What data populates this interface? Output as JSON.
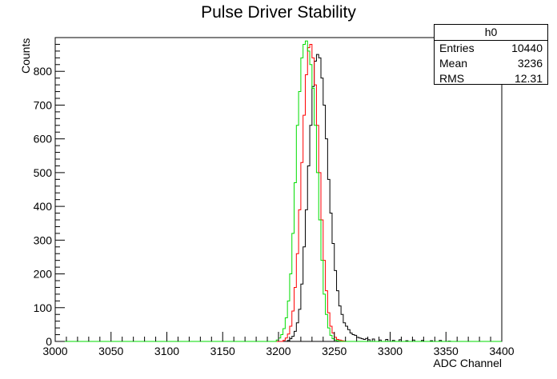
{
  "chart_data": {
    "type": "line",
    "title": "Pulse Driver Stability",
    "xlabel": "ADC Channel",
    "ylabel": "Counts",
    "xlim": [
      3000,
      3400
    ],
    "ylim": [
      0,
      900
    ],
    "xticks": [
      3000,
      3050,
      3100,
      3150,
      3200,
      3250,
      3300,
      3350,
      3400
    ],
    "yticks": [
      0,
      100,
      200,
      300,
      400,
      500,
      600,
      700,
      800
    ],
    "bin_width": 2,
    "grid": false,
    "series": [
      {
        "color": "#000000",
        "x": [
          3208,
          3210,
          3212,
          3214,
          3216,
          3218,
          3220,
          3222,
          3224,
          3226,
          3228,
          3230,
          3232,
          3234,
          3236,
          3238,
          3240,
          3242,
          3244,
          3246,
          3248,
          3250,
          3252,
          3254,
          3256,
          3258,
          3260,
          3262,
          3264,
          3266,
          3268,
          3270,
          3272,
          3274,
          3276,
          3278,
          3280,
          3284,
          3290,
          3296,
          3302,
          3308,
          3314,
          3320,
          3328,
          3336,
          3344,
          3352,
          3360
        ],
        "y": [
          3,
          8,
          15,
          30,
          55,
          95,
          170,
          280,
          390,
          520,
          640,
          755,
          830,
          850,
          840,
          780,
          700,
          600,
          480,
          380,
          290,
          210,
          150,
          105,
          80,
          55,
          45,
          35,
          25,
          20,
          18,
          12,
          10,
          8,
          6,
          9,
          5,
          7,
          4,
          6,
          3,
          5,
          2,
          4,
          3,
          2,
          3,
          1,
          0
        ]
      },
      {
        "color": "#ff0000",
        "x": [
          3204,
          3206,
          3208,
          3210,
          3212,
          3214,
          3216,
          3218,
          3220,
          3222,
          3224,
          3226,
          3228,
          3230,
          3232,
          3234,
          3236,
          3238,
          3240,
          3242,
          3244,
          3246,
          3248,
          3250,
          3252,
          3254,
          3256,
          3258,
          3260
        ],
        "y": [
          3,
          10,
          22,
          45,
          90,
          160,
          260,
          390,
          530,
          670,
          790,
          870,
          880,
          840,
          760,
          640,
          500,
          360,
          240,
          150,
          85,
          45,
          25,
          12,
          6,
          4,
          2,
          1,
          0
        ]
      },
      {
        "color": "#00dd00",
        "x": [
          3198,
          3200,
          3202,
          3204,
          3206,
          3208,
          3210,
          3212,
          3214,
          3216,
          3218,
          3220,
          3222,
          3224,
          3226,
          3228,
          3230,
          3232,
          3234,
          3236,
          3238,
          3240,
          3242,
          3244,
          3246,
          3248,
          3250,
          3252,
          3254,
          3256
        ],
        "y": [
          4,
          10,
          20,
          38,
          70,
          120,
          200,
          320,
          470,
          640,
          740,
          840,
          880,
          890,
          860,
          820,
          750,
          640,
          500,
          360,
          240,
          140,
          80,
          40,
          18,
          8,
          4,
          2,
          1,
          0
        ]
      }
    ],
    "stats": {
      "name": "h0",
      "entries_label": "Entries",
      "entries_value": "10440",
      "mean_label": "Mean",
      "mean_value": "3236",
      "rms_label": "RMS",
      "rms_value": "12.31"
    }
  }
}
